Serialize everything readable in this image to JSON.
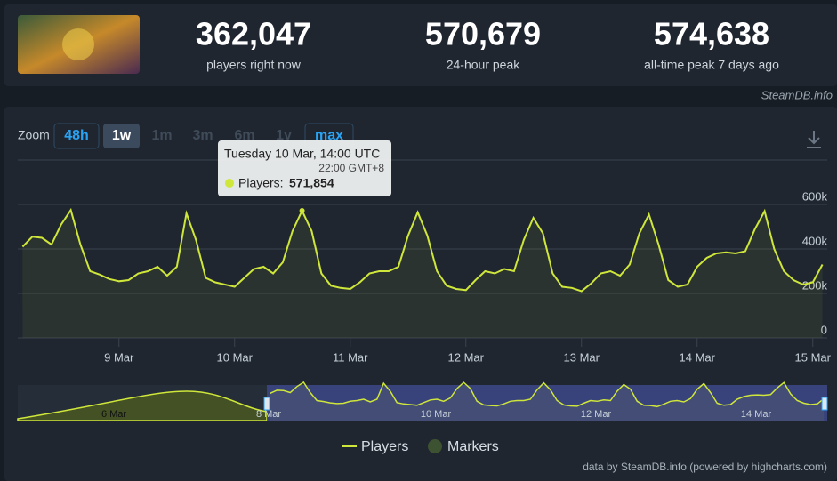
{
  "header": {
    "stats": [
      {
        "value": "362,047",
        "label": "players right now"
      },
      {
        "value": "570,679",
        "label": "24-hour peak"
      },
      {
        "value": "574,638",
        "label": "all-time peak 7 days ago"
      }
    ],
    "credit": "SteamDB.info"
  },
  "zoom": {
    "label": "Zoom",
    "buttons": [
      "48h",
      "1w",
      "1m",
      "3m",
      "6m",
      "1y",
      "max"
    ]
  },
  "tooltip": {
    "date": "Tuesday 10 Mar, 14:00 UTC",
    "local": "22:00 GMT+8",
    "series": "Players:",
    "value": "571,854"
  },
  "chart_data": {
    "type": "line",
    "x": [
      4,
      6,
      8,
      10,
      12,
      14,
      16,
      18,
      20,
      22,
      24,
      26,
      28,
      30,
      32,
      34,
      36,
      38,
      40,
      42,
      44,
      46,
      48,
      50,
      52,
      54,
      56,
      58,
      60,
      62,
      64,
      66,
      68,
      70,
      72,
      74,
      76,
      78,
      80,
      82,
      84,
      86,
      88,
      90,
      92,
      94,
      96,
      98,
      100,
      102,
      104,
      106,
      108,
      110,
      112,
      114,
      116,
      118,
      120,
      122,
      124,
      126,
      128,
      130,
      132,
      134,
      136,
      138,
      140,
      142,
      144,
      146,
      148,
      150,
      152,
      154,
      156,
      158,
      160,
      162,
      164,
      166,
      168,
      170
    ],
    "series": [
      {
        "name": "Players",
        "color": "#cfe63a",
        "values": [
          410000,
          455000,
          450000,
          420000,
          510000,
          575000,
          420000,
          300000,
          285000,
          265000,
          255000,
          260000,
          290000,
          300000,
          320000,
          280000,
          320000,
          560000,
          440000,
          270000,
          250000,
          240000,
          230000,
          270000,
          310000,
          320000,
          290000,
          340000,
          480000,
          571854,
          480000,
          290000,
          235000,
          225000,
          220000,
          250000,
          290000,
          300000,
          300000,
          320000,
          460000,
          565000,
          460000,
          300000,
          235000,
          220000,
          215000,
          260000,
          300000,
          290000,
          310000,
          300000,
          440000,
          540000,
          470000,
          290000,
          230000,
          225000,
          210000,
          245000,
          290000,
          300000,
          280000,
          330000,
          470000,
          555000,
          420000,
          260000,
          230000,
          240000,
          320000,
          360000,
          380000,
          385000,
          380000,
          390000,
          490000,
          570000,
          400000,
          300000,
          260000,
          240000,
          250000,
          330000
        ]
      }
    ],
    "xlim": [
      3,
      171
    ],
    "xticks": [
      {
        "value": 24,
        "label": "9 Mar"
      },
      {
        "value": 48,
        "label": "10 Mar"
      },
      {
        "value": 72,
        "label": "11 Mar"
      },
      {
        "value": 96,
        "label": "12 Mar"
      },
      {
        "value": 120,
        "label": "13 Mar"
      },
      {
        "value": 144,
        "label": "14 Mar"
      },
      {
        "value": 168,
        "label": "15 Mar"
      }
    ],
    "ylim": [
      0,
      800000
    ],
    "yticks": [
      0,
      {
        "value": 200000,
        "label": "200k"
      },
      {
        "value": 400000,
        "label": "400k"
      },
      {
        "value": 600000,
        "label": "600k"
      }
    ],
    "grid": true
  },
  "navigator": {
    "labels": [
      "6 Mar",
      "8 Mar",
      "10 Mar",
      "12 Mar",
      "14 Mar"
    ]
  },
  "legend": {
    "markers": "Markers"
  },
  "footer": "data by SteamDB.info (powered by highcharts.com)"
}
